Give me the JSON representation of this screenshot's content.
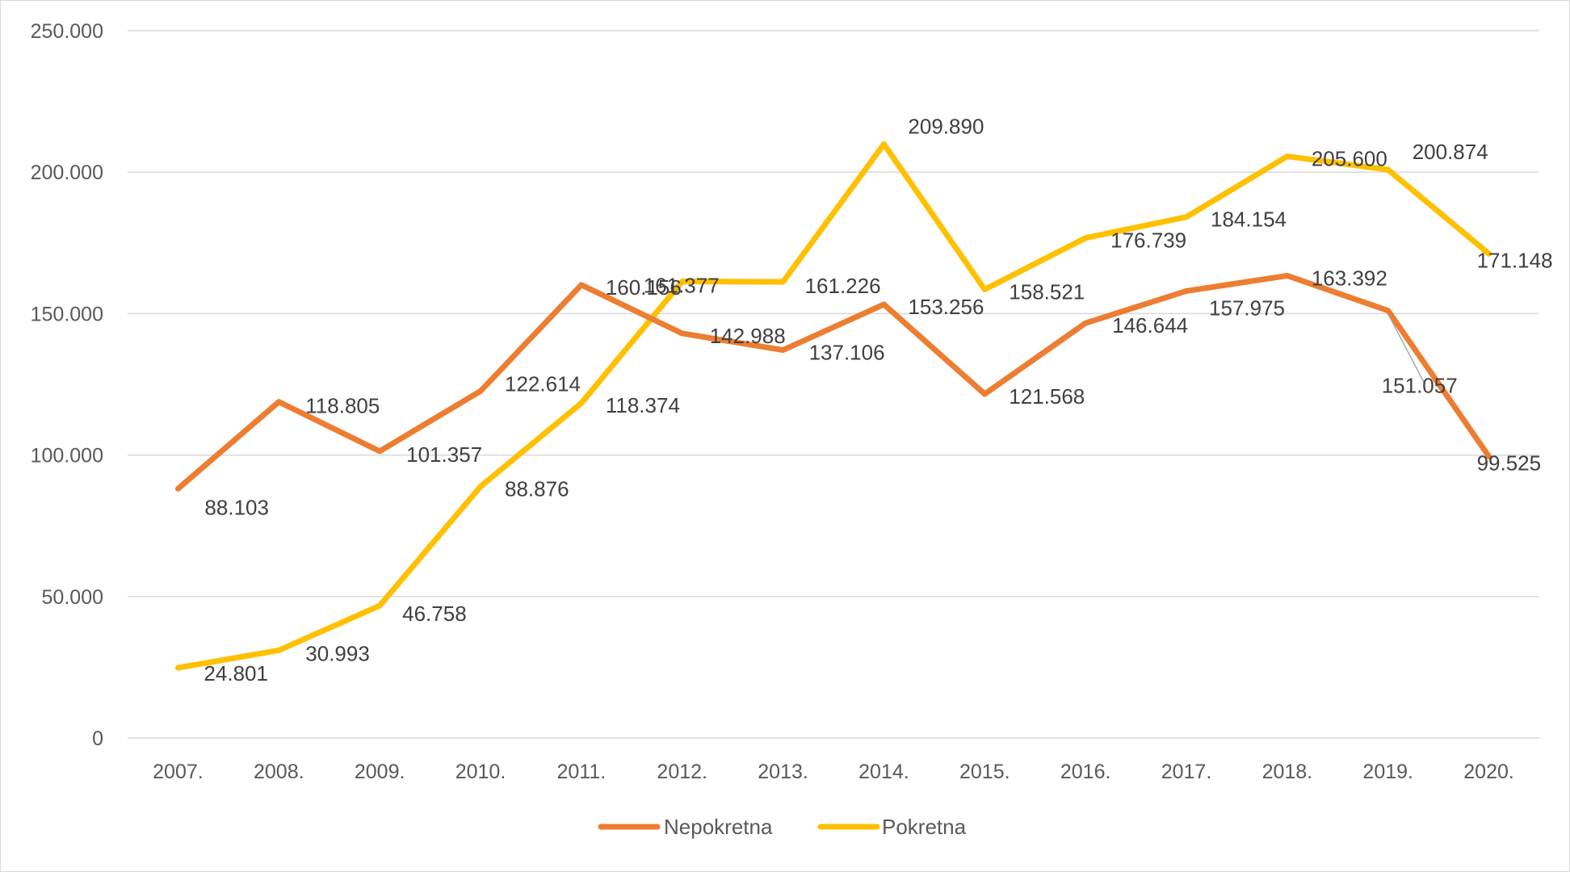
{
  "chart_data": {
    "type": "line",
    "title": "",
    "xlabel": "",
    "ylabel": "",
    "categories": [
      "2007.",
      "2008.",
      "2009.",
      "2010.",
      "2011.",
      "2012.",
      "2013.",
      "2014.",
      "2015.",
      "2016.",
      "2017.",
      "2018.",
      "2019.",
      "2020."
    ],
    "ylim": [
      0,
      250000
    ],
    "yticks": [
      0,
      50000,
      100000,
      150000,
      200000,
      250000
    ],
    "ytick_labels": [
      "0",
      "50.000",
      "100.000",
      "150.000",
      "200.000",
      "250.000"
    ],
    "grid": true,
    "legend_position": "bottom",
    "series": [
      {
        "name": "Nepokretna",
        "color": "#ED7D31",
        "values": [
          88103,
          118805,
          101357,
          122614,
          160156,
          142988,
          137106,
          153256,
          121568,
          146644,
          157975,
          163392,
          151057,
          99525
        ],
        "labels": [
          "88.103",
          "118.805",
          "101.357",
          "122.614",
          "160.156",
          "142.988",
          "137.106",
          "153.256",
          "121.568",
          "146.644",
          "157.975",
          "163.392",
          "151.057",
          "99.525"
        ]
      },
      {
        "name": "Pokretna",
        "color": "#FFC000",
        "values": [
          24801,
          30993,
          46758,
          88876,
          118374,
          161377,
          161226,
          209890,
          158521,
          176739,
          184154,
          205600,
          200874,
          171148
        ],
        "labels": [
          "24.801",
          "30.993",
          "46.758",
          "88.876",
          "118.374",
          "161.377",
          "161.226",
          "209.890",
          "158.521",
          "176.739",
          "184.154",
          "205.600",
          "200.874",
          "171.148"
        ]
      }
    ]
  }
}
